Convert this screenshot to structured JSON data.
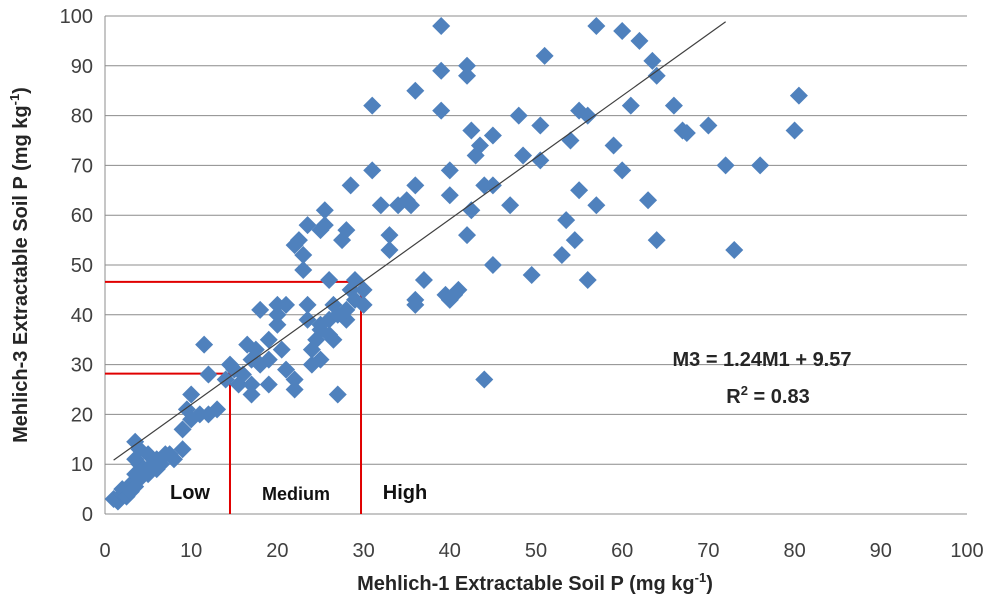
{
  "chart_data": {
    "type": "scatter",
    "xlabel": "Mehlich-1 Extractable Soil P (mg kg",
    "xlabel_sup": "-1",
    "xlabel_end": ")",
    "ylabel": "Mehlich-3 Extractable Soil P (mg kg",
    "ylabel_sup": "-1",
    "ylabel_end": ")",
    "xlim": [
      0,
      100
    ],
    "ylim": [
      0,
      100
    ],
    "xticks": [
      0,
      10,
      20,
      30,
      40,
      50,
      60,
      70,
      80,
      90,
      100
    ],
    "yticks": [
      0,
      10,
      20,
      30,
      40,
      50,
      60,
      70,
      80,
      90,
      100
    ],
    "grid": "horizontal",
    "marker_color": "#4F81BD",
    "trendline": {
      "slope": 1.24,
      "intercept": 9.57,
      "x_range": [
        1,
        72
      ],
      "color": "#404040"
    },
    "equation_text": "M3 = 1.24M1 + 9.57",
    "r2_label": "R",
    "r2_sup": "2",
    "r2_value": " = 0.83",
    "thresholds": {
      "color": "#E00000",
      "low_medium": {
        "x": 14.5,
        "y": 28.2
      },
      "medium_high": {
        "x": 29.7,
        "y": 46.6
      }
    },
    "zone_labels": {
      "low": "Low",
      "medium": "Medium",
      "high": "High"
    },
    "points": [
      [
        1,
        3
      ],
      [
        1.5,
        2.5
      ],
      [
        2,
        4
      ],
      [
        2,
        5
      ],
      [
        2.5,
        3.5
      ],
      [
        3,
        6
      ],
      [
        3,
        4.5
      ],
      [
        3.5,
        5.5
      ],
      [
        3.5,
        8
      ],
      [
        4,
        7
      ],
      [
        4,
        10
      ],
      [
        4.5,
        9
      ],
      [
        3.5,
        11
      ],
      [
        4,
        13
      ],
      [
        3.5,
        14.5
      ],
      [
        5,
        12
      ],
      [
        5,
        8
      ],
      [
        5.5,
        10
      ],
      [
        6,
        9
      ],
      [
        6,
        11
      ],
      [
        6.5,
        10
      ],
      [
        7,
        12
      ],
      [
        7.5,
        12
      ],
      [
        8,
        11
      ],
      [
        9,
        13
      ],
      [
        9,
        17
      ],
      [
        9.5,
        21
      ],
      [
        10,
        19
      ],
      [
        10,
        24
      ],
      [
        11,
        20
      ],
      [
        12,
        20
      ],
      [
        11.5,
        34
      ],
      [
        12,
        28
      ],
      [
        13,
        21
      ],
      [
        14,
        27
      ],
      [
        14.5,
        30
      ],
      [
        15,
        29
      ],
      [
        15.5,
        26
      ],
      [
        16,
        28
      ],
      [
        16.5,
        34
      ],
      [
        17,
        31
      ],
      [
        17.5,
        33
      ],
      [
        17,
        26
      ],
      [
        17,
        24
      ],
      [
        18,
        41
      ],
      [
        18,
        30
      ],
      [
        19,
        35
      ],
      [
        19,
        31
      ],
      [
        19,
        26
      ],
      [
        20,
        38
      ],
      [
        20,
        40
      ],
      [
        20,
        42
      ],
      [
        20.5,
        33
      ],
      [
        21,
        42
      ],
      [
        21,
        29
      ],
      [
        22,
        25
      ],
      [
        22,
        27
      ],
      [
        22,
        54
      ],
      [
        22.5,
        55
      ],
      [
        23,
        49
      ],
      [
        23,
        52
      ],
      [
        23.5,
        58
      ],
      [
        23.5,
        39
      ],
      [
        23.5,
        42
      ],
      [
        24,
        30
      ],
      [
        24,
        33
      ],
      [
        24.5,
        35
      ],
      [
        25,
        31
      ],
      [
        25,
        38
      ],
      [
        25,
        37
      ],
      [
        25,
        57
      ],
      [
        25.5,
        58
      ],
      [
        25.5,
        61
      ],
      [
        26,
        47
      ],
      [
        26,
        39
      ],
      [
        26,
        36
      ],
      [
        26.5,
        42
      ],
      [
        26.5,
        35
      ],
      [
        27,
        40
      ],
      [
        27,
        24
      ],
      [
        27.5,
        55
      ],
      [
        28,
        57
      ],
      [
        28,
        39
      ],
      [
        28,
        41
      ],
      [
        28.5,
        45
      ],
      [
        28.5,
        66
      ],
      [
        29,
        43
      ],
      [
        29,
        47
      ],
      [
        30,
        42
      ],
      [
        30,
        45
      ],
      [
        31,
        69
      ],
      [
        31,
        82
      ],
      [
        32,
        62
      ],
      [
        33,
        53
      ],
      [
        33,
        56
      ],
      [
        34,
        62
      ],
      [
        35,
        63
      ],
      [
        35.5,
        62
      ],
      [
        36,
        85
      ],
      [
        36,
        43
      ],
      [
        36,
        42
      ],
      [
        36,
        66
      ],
      [
        37,
        47
      ],
      [
        39,
        89
      ],
      [
        39,
        81
      ],
      [
        39,
        98
      ],
      [
        39.5,
        44
      ],
      [
        40,
        69
      ],
      [
        40,
        64
      ],
      [
        40,
        43
      ],
      [
        40.5,
        44
      ],
      [
        41,
        45
      ],
      [
        42,
        90
      ],
      [
        42,
        88
      ],
      [
        42,
        56
      ],
      [
        42.5,
        61
      ],
      [
        42.5,
        77
      ],
      [
        43,
        72
      ],
      [
        43.5,
        74
      ],
      [
        44,
        66
      ],
      [
        44,
        27
      ],
      [
        45,
        66
      ],
      [
        45,
        76
      ],
      [
        45,
        50
      ],
      [
        47,
        62
      ],
      [
        48,
        80
      ],
      [
        48.5,
        72
      ],
      [
        49.5,
        48
      ],
      [
        50.5,
        71
      ],
      [
        50.5,
        78
      ],
      [
        51,
        92
      ],
      [
        53,
        52
      ],
      [
        53.5,
        59
      ],
      [
        54,
        75
      ],
      [
        54.5,
        55
      ],
      [
        55,
        81
      ],
      [
        55,
        65
      ],
      [
        56,
        80
      ],
      [
        56,
        47
      ],
      [
        57,
        62
      ],
      [
        57,
        98
      ],
      [
        59,
        74
      ],
      [
        60,
        97
      ],
      [
        60,
        69
      ],
      [
        61,
        82
      ],
      [
        62,
        95
      ],
      [
        63,
        63
      ],
      [
        63.5,
        91
      ],
      [
        64,
        88
      ],
      [
        64,
        55
      ],
      [
        66,
        82
      ],
      [
        67,
        77
      ],
      [
        67.5,
        76.5
      ],
      [
        70,
        78
      ],
      [
        72,
        70
      ],
      [
        73,
        53
      ],
      [
        76,
        70
      ],
      [
        80,
        77
      ],
      [
        80.5,
        84
      ]
    ]
  }
}
